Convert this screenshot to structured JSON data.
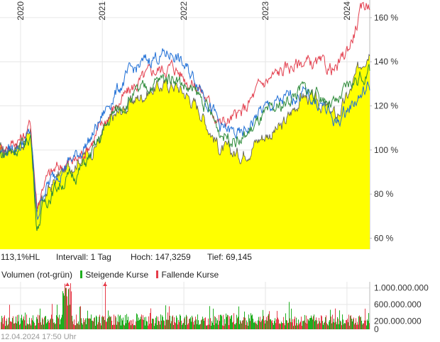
{
  "chart_data": [
    {
      "type": "line",
      "title": "",
      "xlabel": "",
      "ylabel": "",
      "x_ticks": [
        "2020",
        "2021",
        "2022",
        "2023",
        "2024"
      ],
      "y_ticks": [
        "60 %",
        "80 %",
        "100 %",
        "120 %",
        "140 %",
        "160 %"
      ],
      "ylim": [
        55,
        168
      ],
      "grid": true,
      "x_dates": [
        "2019-10",
        "2020-01",
        "2020-02",
        "2020-03",
        "2020-04",
        "2020-06",
        "2020-09",
        "2020-11",
        "2021-02",
        "2021-05",
        "2021-08",
        "2021-11",
        "2022-01",
        "2022-03",
        "2022-06",
        "2022-09",
        "2022-12",
        "2023-03",
        "2023-06",
        "2023-09",
        "2023-11",
        "2024-01",
        "2024-03",
        "2024-04"
      ],
      "series": [
        {
          "color": "#ffff00",
          "style": "area",
          "values": [
            100,
            104,
            109,
            70,
            78,
            88,
            96,
            100,
            114,
            122,
            128,
            130,
            125,
            118,
            100,
            98,
            106,
            110,
            125,
            120,
            115,
            126,
            142,
            147
          ]
        },
        {
          "color": "#e3404f",
          "values": [
            101,
            106,
            112,
            74,
            86,
            92,
            96,
            104,
            118,
            128,
            136,
            138,
            132,
            128,
            112,
            116,
            130,
            136,
            140,
            138,
            136,
            148,
            165,
            168
          ]
        },
        {
          "color": "#1f6fd6",
          "values": [
            99,
            103,
            108,
            68,
            82,
            90,
            98,
            106,
            124,
            136,
            142,
            144,
            136,
            130,
            110,
            106,
            118,
            122,
            126,
            120,
            112,
            120,
            126,
            129
          ]
        },
        {
          "color": "#2e8b3a",
          "values": [
            98,
            102,
            107,
            64,
            76,
            84,
            90,
            98,
            116,
            124,
            130,
            134,
            128,
            124,
            108,
            104,
            114,
            120,
            128,
            124,
            120,
            130,
            134,
            136
          ]
        }
      ]
    },
    {
      "type": "bar",
      "title": "Volumen (rot-grün)",
      "y_ticks": [
        "1.000.000.000",
        "600.000.000",
        "200.000.000",
        "0"
      ],
      "legend": [
        "Steigende Kurse",
        "Fallende Kurse"
      ],
      "colors": {
        "up": "#1fae1f",
        "down": "#e63c4a"
      }
    }
  ],
  "info": {
    "value": "113,1%HL",
    "interval": "Intervall: 1 Tag",
    "high": "Hoch: 147,3259",
    "low": "Tief:  69,145"
  },
  "timestamp": "12.04.2024 17:50 Uhr"
}
